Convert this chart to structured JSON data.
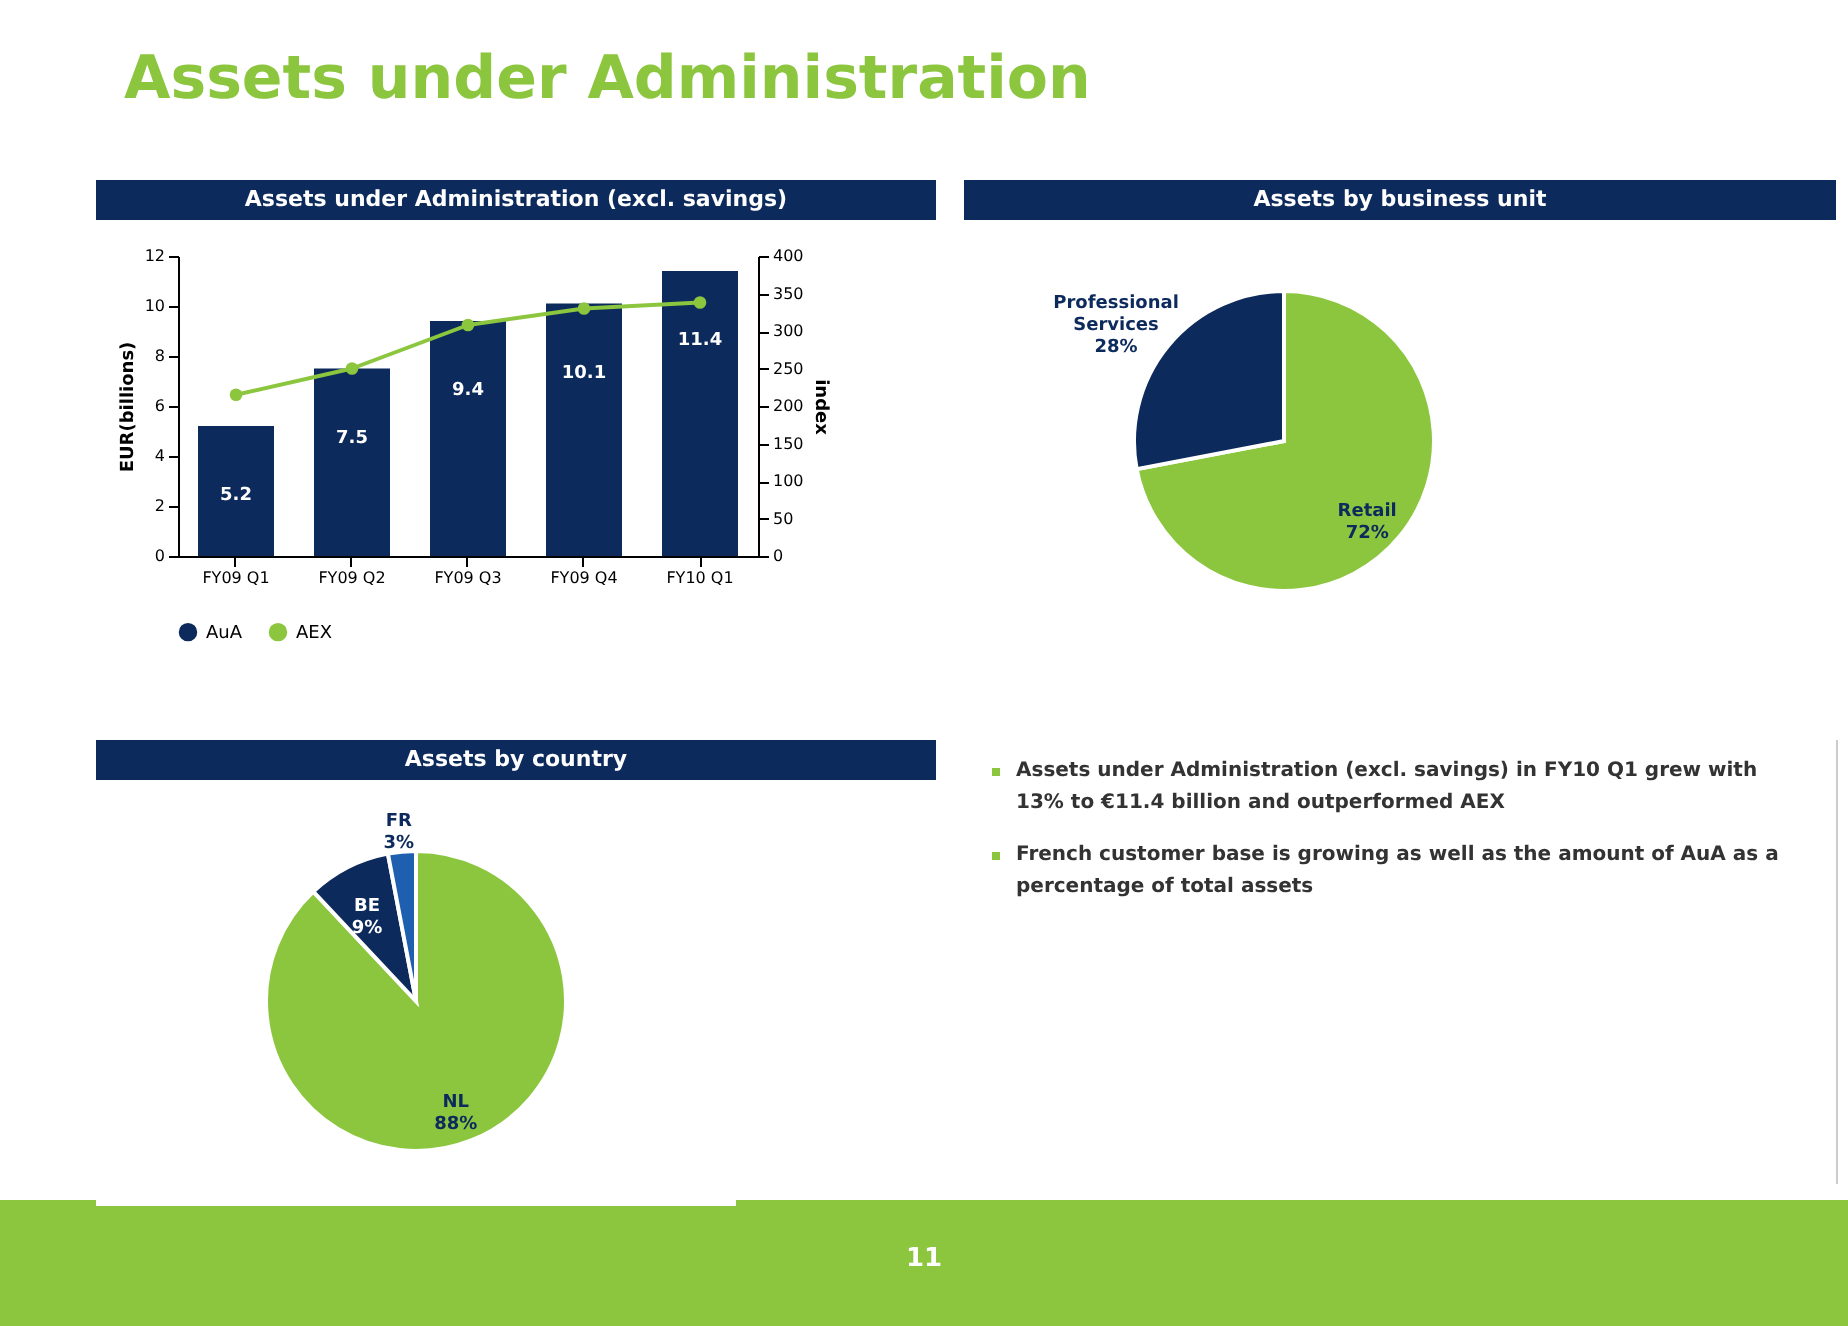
{
  "chart_data": [
    {
      "type": "other",
      "title": "Assets under Administration",
      "annotations": [
        "11"
      ]
    },
    {
      "type": "bar",
      "title": "Assets under Administration (excl. savings)",
      "categories": [
        "FY09 Q1",
        "FY09 Q2",
        "FY09 Q3",
        "FY09 Q4",
        "FY10 Q1"
      ],
      "ylabel": "EUR(billions)",
      "y2label": "index",
      "ylim": [
        0,
        12
      ],
      "yticks": [
        0,
        2,
        4,
        6,
        8,
        10,
        12
      ],
      "y2lim": [
        0,
        400
      ],
      "y2ticks": [
        0,
        50,
        100,
        150,
        200,
        250,
        300,
        350,
        400
      ],
      "legend": "bottom",
      "marker": "circle",
      "grid": false,
      "series": [
        {
          "name": "AuA",
          "type": "bar",
          "color": "#0d2a5c",
          "values": [
            5.2,
            7.5,
            9.4,
            10.1,
            11.4
          ],
          "value_labels": [
            "5.2",
            "7.5",
            "9.4",
            "10.1",
            "11.4"
          ]
        },
        {
          "name": "AEX",
          "type": "line",
          "axis": "y2",
          "color": "#8cc63f",
          "values": [
            215,
            250,
            308,
            330,
            338
          ]
        }
      ]
    },
    {
      "type": "pie",
      "title": "Assets by business unit",
      "categories": [
        "Retail",
        "Professional Services"
      ],
      "values": [
        72,
        28
      ],
      "colors": [
        "#8cc63f",
        "#0d2a5c"
      ],
      "value_labels": [
        "72%",
        "28%"
      ]
    },
    {
      "type": "pie",
      "title": "Assets by country",
      "categories": [
        "NL",
        "BE",
        "FR"
      ],
      "values": [
        88,
        9,
        3
      ],
      "colors": [
        "#8cc63f",
        "#0d2a5c",
        "#1f5fb0"
      ],
      "value_labels": [
        "88%",
        "9%",
        "3%"
      ]
    },
    {
      "type": "other",
      "annotations": [
        "Assets under Administration (excl. savings) in FY10 Q1 grew with 13% to €11.4 billion and outperformed AEX",
        "French customer base is growing as well as the amount of AuA as a percentage of total assets"
      ]
    }
  ]
}
